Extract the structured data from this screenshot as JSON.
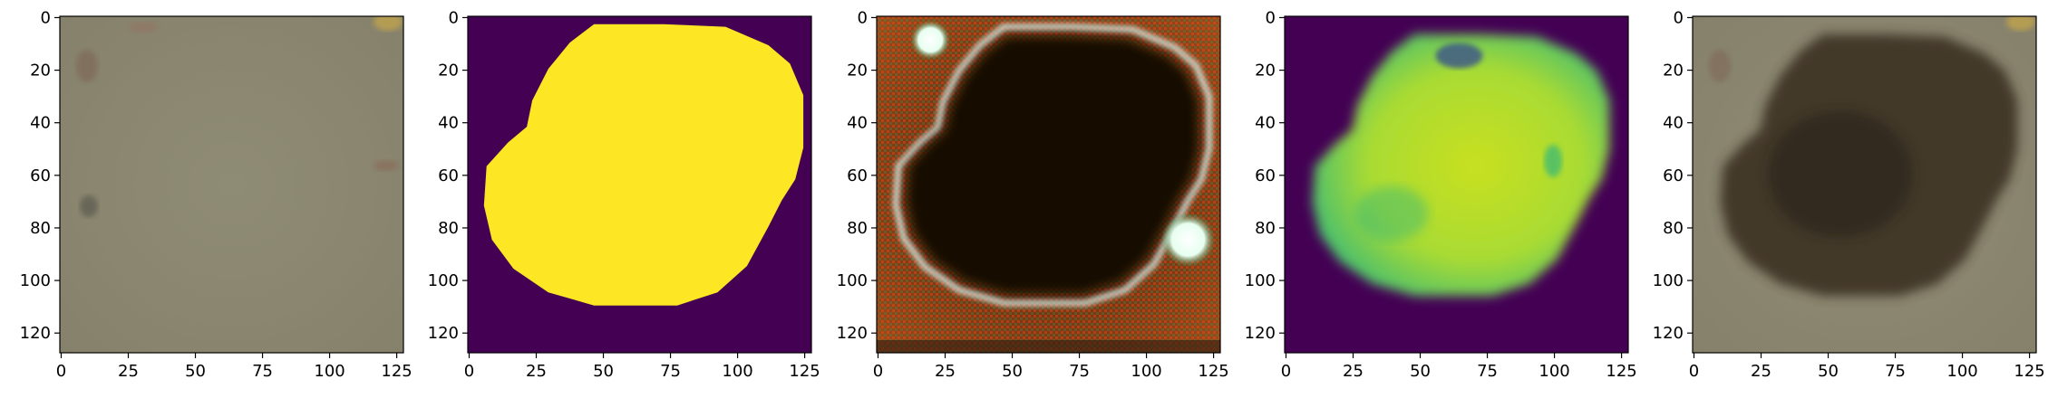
{
  "panels": [
    {
      "id": "input-image",
      "kind": "rgb"
    },
    {
      "id": "mask",
      "kind": "mask"
    },
    {
      "id": "generated-rgb",
      "kind": "artifact"
    },
    {
      "id": "soft-mask",
      "kind": "softmask"
    },
    {
      "id": "composite",
      "kind": "composite"
    }
  ],
  "axes": {
    "x_ticks": [
      0,
      25,
      50,
      75,
      100,
      125
    ],
    "y_ticks": [
      0,
      20,
      40,
      60,
      80,
      100,
      120
    ],
    "range": [
      0,
      128
    ]
  },
  "colors": {
    "background_beige": "#8d8a73",
    "viridis_purple": "#440154",
    "viridis_yellow": "#fde725",
    "viridis_green": "#7ad151",
    "viridis_teal": "#35b779",
    "viridis_blue": "#3b528b",
    "dark_blob": "#140c06",
    "composite_blob": "#3f3625",
    "rust": "#8b3d14"
  }
}
